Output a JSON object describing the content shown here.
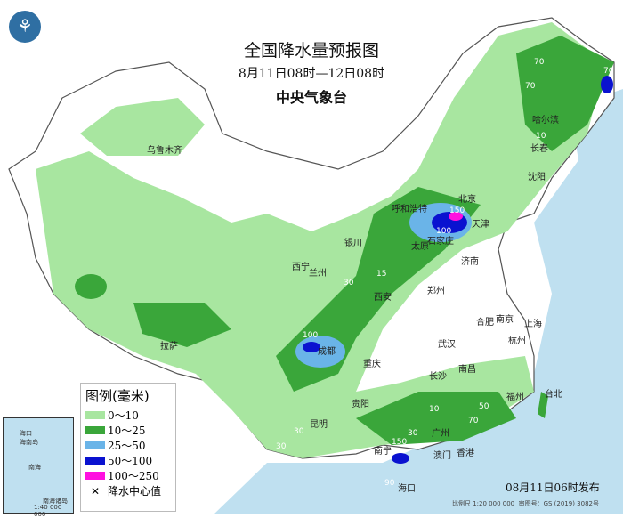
{
  "header": {
    "title": "全国降水量预报图",
    "period": "8月11日08时—12日08时",
    "issuer": "中央气象台",
    "logo": "cma-logo"
  },
  "legend": {
    "title": "图例(毫米)",
    "items": [
      {
        "label": "0～10",
        "color": "#a8e6a0"
      },
      {
        "label": "10～25",
        "color": "#3aa63a"
      },
      {
        "label": "25～50",
        "color": "#6ab4e8"
      },
      {
        "label": "50～100",
        "color": "#0a12d0"
      },
      {
        "label": "100～250",
        "color": "#ff10e0"
      }
    ],
    "center_label": "降水中心值"
  },
  "cities": [
    "乌鲁木齐",
    "哈尔滨",
    "长春",
    "沈阳",
    "呼和浩特",
    "北京",
    "天津",
    "太原",
    "石家庄",
    "济南",
    "银川",
    "西宁",
    "兰州",
    "西安",
    "郑州",
    "合肥",
    "南京",
    "上海",
    "武汉",
    "杭州",
    "拉萨",
    "成都",
    "重庆",
    "长沙",
    "南昌",
    "福州",
    "台北",
    "贵阳",
    "昆明",
    "南宁",
    "广州",
    "香港",
    "澳门",
    "海口"
  ],
  "rain_centers": [
    "70",
    "70",
    "70",
    "10",
    "150",
    "100",
    "30",
    "15",
    "100",
    "10",
    "50",
    "70",
    "30",
    "30",
    "30",
    "150",
    "90"
  ],
  "inset": {
    "labels": [
      "海口",
      "海南岛",
      "南海",
      "南海诸岛",
      "1:40 000 000"
    ]
  },
  "footer": {
    "issued": "08月11日06时发布",
    "scale": "比例尺 1:20 000 000",
    "approval": "审图号：GS (2019) 3082号"
  }
}
